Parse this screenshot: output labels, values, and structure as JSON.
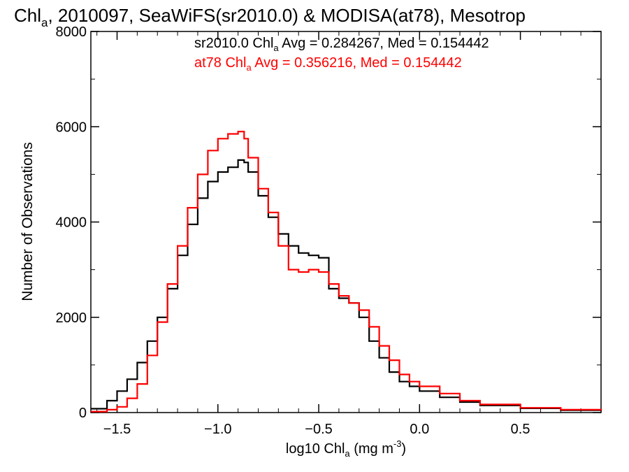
{
  "chart_data": {
    "type": "line",
    "title": {
      "main": "Chl",
      "sub": "a",
      "rest": ", 2010097, SeaWiFS(sr2010.0) & MODISA(at78), Mesotrop"
    },
    "xlabel": {
      "pre": "log10 Chl",
      "sub": "a",
      "mid": " (mg m",
      "sup": "-3",
      "post": ")"
    },
    "ylabel": "Number of Observations",
    "xlim": [
      -1.63,
      0.9
    ],
    "ylim": [
      0,
      8000
    ],
    "xticks": [
      -1.5,
      -1.0,
      -0.5,
      0.0,
      0.5
    ],
    "xtick_labels": [
      "−1.5",
      "−1.0",
      "−0.5",
      "0.0",
      "0.5"
    ],
    "yticks": [
      0,
      2000,
      4000,
      6000,
      8000
    ],
    "ytick_labels": [
      "0",
      "2000",
      "4000",
      "6000",
      "8000"
    ],
    "legend": [
      {
        "pre": "sr2010.0 Chl",
        "sub": "a",
        "post": " Avg = 0.284267, Med = 0.154442",
        "color": "#000000"
      },
      {
        "pre": "at78 Chl",
        "sub": "a",
        "post": " Avg = 0.356216, Med = 0.154442",
        "color": "#ff0000"
      }
    ],
    "series": [
      {
        "color": "#000000",
        "x": [
          -1.63,
          -1.55,
          -1.5,
          -1.45,
          -1.4,
          -1.35,
          -1.3,
          -1.25,
          -1.2,
          -1.15,
          -1.1,
          -1.05,
          -1.0,
          -0.95,
          -0.9,
          -0.87,
          -0.85,
          -0.8,
          -0.75,
          -0.7,
          -0.65,
          -0.6,
          -0.55,
          -0.5,
          -0.45,
          -0.4,
          -0.35,
          -0.3,
          -0.25,
          -0.2,
          -0.15,
          -0.1,
          -0.05,
          0.0,
          0.1,
          0.2,
          0.3,
          0.5,
          0.7,
          0.9
        ],
        "y": [
          80,
          250,
          450,
          700,
          1050,
          1500,
          2000,
          2600,
          3300,
          3950,
          4500,
          4850,
          5050,
          5150,
          5300,
          5250,
          5050,
          4550,
          4100,
          3750,
          3500,
          3350,
          3300,
          3250,
          2600,
          2400,
          2300,
          2000,
          1500,
          1150,
          850,
          650,
          550,
          450,
          320,
          220,
          150,
          90,
          50,
          30
        ]
      },
      {
        "color": "#ff0000",
        "x": [
          -1.63,
          -1.55,
          -1.5,
          -1.45,
          -1.4,
          -1.35,
          -1.3,
          -1.25,
          -1.2,
          -1.15,
          -1.1,
          -1.05,
          -1.0,
          -0.95,
          -0.9,
          -0.87,
          -0.85,
          -0.8,
          -0.75,
          -0.7,
          -0.65,
          -0.6,
          -0.55,
          -0.5,
          -0.45,
          -0.4,
          -0.35,
          -0.3,
          -0.25,
          -0.2,
          -0.15,
          -0.1,
          -0.05,
          0.0,
          0.1,
          0.2,
          0.3,
          0.5,
          0.7,
          0.9
        ],
        "y": [
          20,
          60,
          120,
          300,
          600,
          1200,
          1900,
          2700,
          3500,
          4300,
          5000,
          5500,
          5750,
          5850,
          5900,
          5750,
          5350,
          4700,
          4200,
          3500,
          3000,
          2950,
          3000,
          2950,
          2700,
          2450,
          2300,
          2150,
          1800,
          1400,
          1100,
          800,
          650,
          550,
          400,
          250,
          170,
          100,
          60,
          40
        ]
      }
    ]
  }
}
